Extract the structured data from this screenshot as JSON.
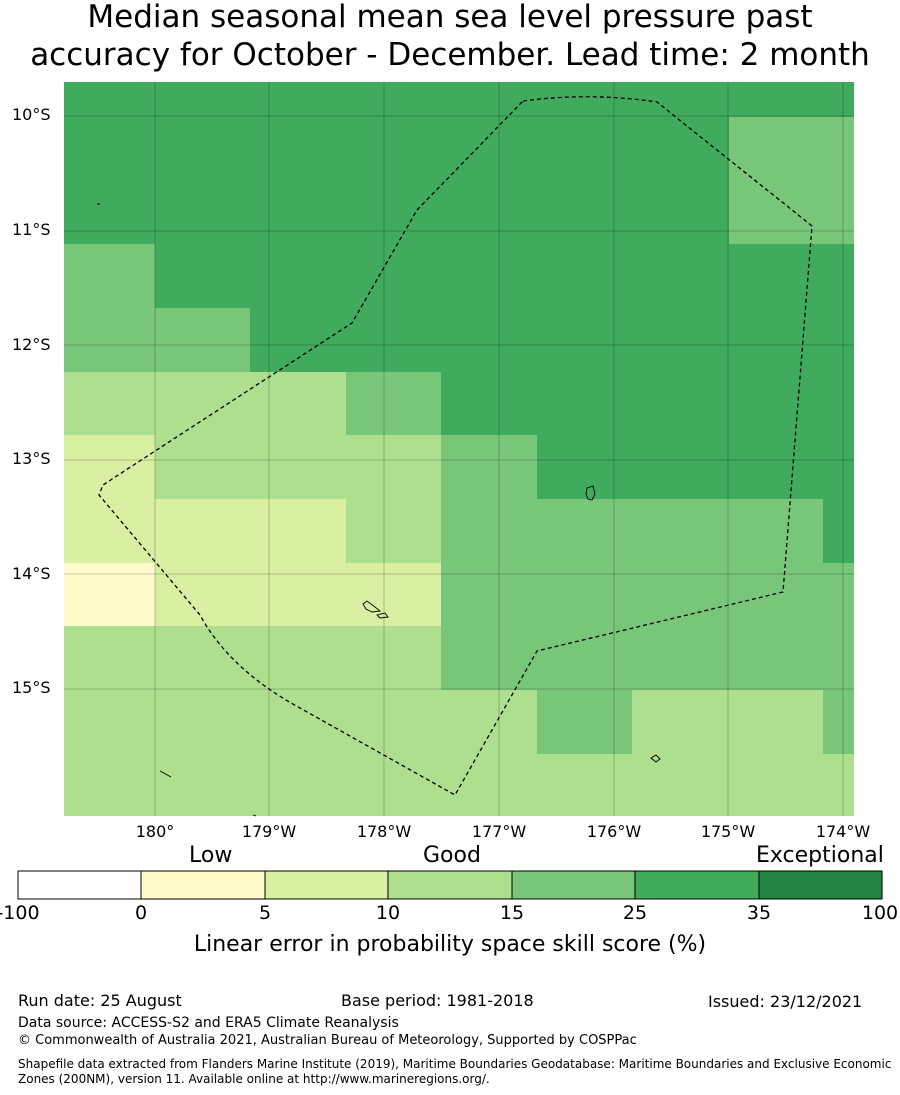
{
  "title_line1": "Median seasonal mean sea level pressure past",
  "title_line2": "accuracy for October - December. Lead time: 2 month",
  "map": {
    "lat_labels": [
      "10°S",
      "11°S",
      "12°S",
      "13°S",
      "14°S",
      "15°S"
    ],
    "lon_labels": [
      "180°",
      "179°W",
      "178°W",
      "177°W",
      "176°W",
      "175°W",
      "174°W"
    ],
    "boundary_style": "dashed"
  },
  "colorbar": {
    "category_labels": [
      "Low",
      "Good",
      "Exceptional"
    ],
    "ticks": [
      "-100",
      "0",
      "5",
      "10",
      "15",
      "25",
      "35",
      "100"
    ],
    "colors": [
      "#ffffff",
      "#fefccb",
      "#d9efa1",
      "#addf8e",
      "#78c679",
      "#41ab5d",
      "#238443"
    ],
    "title": "Linear error in probability space skill score (%)"
  },
  "footer": {
    "run_date": "Run date: 25 August",
    "base_period": "Base period: 1981-2018",
    "issued": "Issued: 23/12/2021",
    "data_source": "Data source: ACCESS-S2 and ERA5 Climate Reanalysis",
    "copyright": "© Commonwealth of Australia 2021, Australian Bureau of Meteorology, Supported by COSPPac",
    "shapefile": "Shapefile data extracted from Flanders Marine Institute (2019), Maritime Boundaries Geodatabase: Maritime Boundaries and Exclusive Economic Zones (200NM), version 11. Available online at http://www.marineregions.org/."
  }
}
